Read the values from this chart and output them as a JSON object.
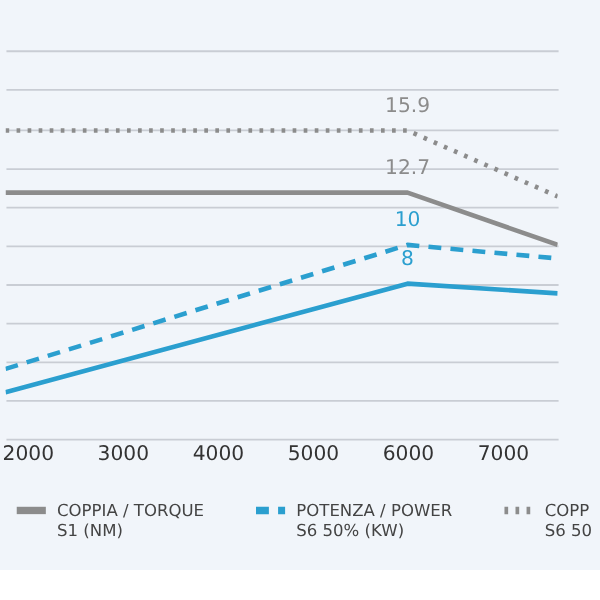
{
  "chart_data": {
    "type": "line",
    "xlim": [
      1770,
      7580
    ],
    "xticks": [
      2000,
      3000,
      4000,
      5000,
      6000,
      7000
    ],
    "tick_labels": "x",
    "grid": "y",
    "legend": "bottom",
    "series": [
      {
        "name": "COPPIA / TORQUE\nS1 (NM)",
        "color": "#8c8c8c",
        "line_style": "solid",
        "x": [
          1770,
          6000,
          7580
        ],
        "values": [
          12.7,
          12.7,
          10.0
        ],
        "value_labels": [
          null,
          "12.7",
          null
        ]
      },
      {
        "name": "POTENZA / POWER\nS6 50% (KW)",
        "color": "#2b9fcf",
        "line_style": "dashed",
        "x": [
          1770,
          6000,
          7580
        ],
        "values": [
          3.6,
          10,
          9.3
        ],
        "value_labels": [
          null,
          "10",
          null
        ]
      },
      {
        "name": "COPP\nS6 50",
        "color": "#8c8c8c",
        "line_style": "dotted",
        "x": [
          1770,
          6000,
          7580
        ],
        "values": [
          15.9,
          15.9,
          12.5
        ],
        "value_labels": [
          null,
          "15.9",
          null
        ]
      },
      {
        "color": "#2b9fcf",
        "line_style": "solid",
        "x": [
          1770,
          6000,
          7580
        ],
        "values": [
          2.4,
          8,
          7.5
        ],
        "value_labels": [
          null,
          "8",
          null
        ]
      }
    ]
  }
}
